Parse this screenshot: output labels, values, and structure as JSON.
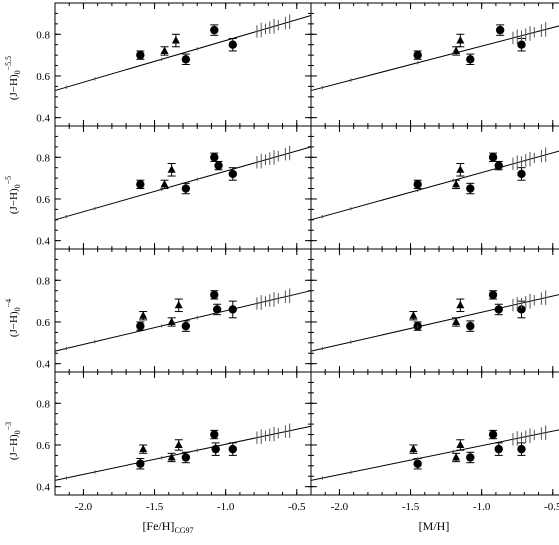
{
  "figure": {
    "x_labels": [
      {
        "main": "[Fe/H]",
        "sub": "CG97"
      },
      {
        "main": "[M/H]",
        "sub": ""
      }
    ],
    "y_ticks": [
      "0.4",
      "0.6",
      "0.8"
    ],
    "x_ticks": [
      "-2.0",
      "-1.5",
      "-1.0",
      "-0.5"
    ]
  },
  "chart_data": [
    {
      "type": "scatter",
      "row": 0,
      "col": 0,
      "xlabel": "[Fe/H]CG97",
      "ylabel": "(J−H)0 at −5.5",
      "xlim": [
        -2.2,
        -0.4
      ],
      "ylim": [
        0.36,
        0.95
      ],
      "series": [
        {
          "marker": "circle",
          "x": [
            -1.6,
            -1.28,
            -1.08,
            -0.95
          ],
          "y": [
            0.7,
            0.68,
            0.82,
            0.75
          ],
          "err": [
            0.02,
            0.025,
            0.025,
            0.03
          ]
        },
        {
          "marker": "triangle",
          "x": [
            -1.43,
            -1.35
          ],
          "y": [
            0.72,
            0.77
          ],
          "err": [
            0.02,
            0.03
          ]
        },
        {
          "marker": "fit-line",
          "x": [
            -2.2,
            -0.4
          ],
          "y": [
            0.53,
            0.89
          ]
        }
      ]
    },
    {
      "type": "scatter",
      "row": 0,
      "col": 1,
      "xlabel": "[M/H]",
      "ylabel": "(J−H)0 at −5.5",
      "xlim": [
        -2.2,
        -0.4
      ],
      "ylim": [
        0.36,
        0.95
      ],
      "series": [
        {
          "marker": "circle",
          "x": [
            -1.45,
            -1.08,
            -0.87,
            -0.72
          ],
          "y": [
            0.7,
            0.68,
            0.82,
            0.75
          ],
          "err": [
            0.02,
            0.025,
            0.025,
            0.03
          ]
        },
        {
          "marker": "triangle",
          "x": [
            -1.18,
            -1.15
          ],
          "y": [
            0.72,
            0.77
          ],
          "err": [
            0.02,
            0.03
          ]
        },
        {
          "marker": "fit-line",
          "x": [
            -2.2,
            -0.4
          ],
          "y": [
            0.53,
            0.85
          ]
        }
      ]
    },
    {
      "type": "scatter",
      "row": 1,
      "col": 0,
      "xlabel": "[Fe/H]CG97",
      "ylabel": "(J−H)0 at −5",
      "xlim": [
        -2.2,
        -0.4
      ],
      "ylim": [
        0.36,
        0.95
      ],
      "series": [
        {
          "marker": "circle",
          "x": [
            -1.6,
            -1.28,
            -1.08,
            -1.05,
            -0.95
          ],
          "y": [
            0.67,
            0.65,
            0.8,
            0.76,
            0.72
          ],
          "err": [
            0.02,
            0.025,
            0.02,
            0.02,
            0.03
          ]
        },
        {
          "marker": "triangle",
          "x": [
            -1.43,
            -1.38
          ],
          "y": [
            0.67,
            0.74
          ],
          "err": [
            0.02,
            0.03
          ]
        },
        {
          "marker": "fit-line",
          "x": [
            -2.2,
            -0.4
          ],
          "y": [
            0.5,
            0.85
          ]
        }
      ]
    },
    {
      "type": "scatter",
      "row": 1,
      "col": 1,
      "xlabel": "[M/H]",
      "ylabel": "(J−H)0 at −5",
      "xlim": [
        -2.2,
        -0.4
      ],
      "ylim": [
        0.36,
        0.95
      ],
      "series": [
        {
          "marker": "circle",
          "x": [
            -1.45,
            -1.08,
            -0.92,
            -0.88,
            -0.72
          ],
          "y": [
            0.67,
            0.65,
            0.8,
            0.76,
            0.72
          ],
          "err": [
            0.02,
            0.025,
            0.02,
            0.02,
            0.03
          ]
        },
        {
          "marker": "triangle",
          "x": [
            -1.18,
            -1.15
          ],
          "y": [
            0.67,
            0.74
          ],
          "err": [
            0.02,
            0.03
          ]
        },
        {
          "marker": "fit-line",
          "x": [
            -2.2,
            -0.4
          ],
          "y": [
            0.5,
            0.84
          ]
        }
      ]
    },
    {
      "type": "scatter",
      "row": 2,
      "col": 0,
      "xlabel": "[Fe/H]CG97",
      "ylabel": "(J−H)0 at −4",
      "xlim": [
        -2.2,
        -0.4
      ],
      "ylim": [
        0.36,
        0.95
      ],
      "series": [
        {
          "marker": "circle",
          "x": [
            -1.6,
            -1.28,
            -1.08,
            -1.06,
            -0.95
          ],
          "y": [
            0.58,
            0.58,
            0.73,
            0.66,
            0.66
          ],
          "err": [
            0.02,
            0.025,
            0.02,
            0.025,
            0.04
          ]
        },
        {
          "marker": "triangle",
          "x": [
            -1.58,
            -1.38,
            -1.33
          ],
          "y": [
            0.63,
            0.6,
            0.68
          ],
          "err": [
            0.02,
            0.02,
            0.03
          ]
        },
        {
          "marker": "fit-line",
          "x": [
            -2.2,
            -0.4
          ],
          "y": [
            0.46,
            0.75
          ]
        }
      ]
    },
    {
      "type": "scatter",
      "row": 2,
      "col": 1,
      "xlabel": "[M/H]",
      "ylabel": "(J−H)0 at −4",
      "xlim": [
        -2.2,
        -0.4
      ],
      "ylim": [
        0.36,
        0.95
      ],
      "series": [
        {
          "marker": "circle",
          "x": [
            -1.45,
            -1.08,
            -0.92,
            -0.88,
            -0.72
          ],
          "y": [
            0.58,
            0.58,
            0.73,
            0.66,
            0.66
          ],
          "err": [
            0.02,
            0.025,
            0.02,
            0.025,
            0.04
          ]
        },
        {
          "marker": "triangle",
          "x": [
            -1.48,
            -1.18,
            -1.15
          ],
          "y": [
            0.63,
            0.6,
            0.68
          ],
          "err": [
            0.02,
            0.02,
            0.03
          ]
        },
        {
          "marker": "fit-line",
          "x": [
            -2.2,
            -0.4
          ],
          "y": [
            0.46,
            0.74
          ]
        }
      ]
    },
    {
      "type": "scatter",
      "row": 3,
      "col": 0,
      "xlabel": "[Fe/H]CG97",
      "ylabel": "(J−H)0 at −3",
      "xlim": [
        -2.2,
        -0.4
      ],
      "ylim": [
        0.36,
        0.95
      ],
      "series": [
        {
          "marker": "circle",
          "x": [
            -1.6,
            -1.28,
            -1.08,
            -1.07,
            -0.95
          ],
          "y": [
            0.51,
            0.54,
            0.65,
            0.58,
            0.58
          ],
          "err": [
            0.025,
            0.025,
            0.02,
            0.03,
            0.03
          ]
        },
        {
          "marker": "triangle",
          "x": [
            -1.58,
            -1.38,
            -1.33
          ],
          "y": [
            0.58,
            0.54,
            0.6
          ],
          "err": [
            0.02,
            0.02,
            0.025
          ]
        },
        {
          "marker": "fit-line",
          "x": [
            -2.2,
            -0.4
          ],
          "y": [
            0.43,
            0.69
          ]
        }
      ]
    },
    {
      "type": "scatter",
      "row": 3,
      "col": 1,
      "xlabel": "[M/H]",
      "ylabel": "(J−H)0 at −3",
      "xlim": [
        -2.2,
        -0.4
      ],
      "ylim": [
        0.36,
        0.95
      ],
      "series": [
        {
          "marker": "circle",
          "x": [
            -1.45,
            -1.08,
            -0.92,
            -0.88,
            -0.72
          ],
          "y": [
            0.51,
            0.54,
            0.65,
            0.58,
            0.58
          ],
          "err": [
            0.025,
            0.025,
            0.02,
            0.03,
            0.03
          ]
        },
        {
          "marker": "triangle",
          "x": [
            -1.48,
            -1.18,
            -1.15
          ],
          "y": [
            0.58,
            0.54,
            0.6
          ],
          "err": [
            0.02,
            0.02,
            0.025
          ]
        },
        {
          "marker": "fit-line",
          "x": [
            -2.2,
            -0.4
          ],
          "y": [
            0.43,
            0.68
          ]
        }
      ]
    }
  ]
}
